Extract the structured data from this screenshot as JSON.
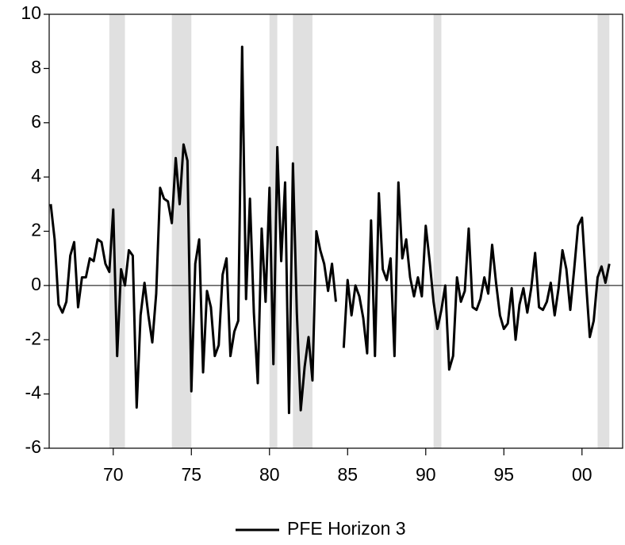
{
  "chart_data": {
    "type": "line",
    "x": [
      1966,
      1966.25,
      1966.5,
      1966.75,
      1967,
      1967.25,
      1967.5,
      1967.75,
      1968,
      1968.25,
      1968.5,
      1968.75,
      1969,
      1969.25,
      1969.5,
      1969.75,
      1970,
      1970.25,
      1970.5,
      1970.75,
      1971,
      1971.25,
      1971.5,
      1971.75,
      1972,
      1972.25,
      1972.5,
      1972.75,
      1973,
      1973.25,
      1973.5,
      1973.75,
      1974,
      1974.25,
      1974.5,
      1974.75,
      1975,
      1975.25,
      1975.5,
      1975.75,
      1976,
      1976.25,
      1976.5,
      1976.75,
      1977,
      1977.25,
      1977.5,
      1977.75,
      1978,
      1978.25,
      1978.5,
      1978.75,
      1979,
      1979.25,
      1979.5,
      1979.75,
      1980,
      1980.25,
      1980.5,
      1980.75,
      1981,
      1981.25,
      1981.5,
      1981.75,
      1982,
      1982.25,
      1982.5,
      1982.75,
      1983,
      1983.25,
      1983.5,
      1983.75,
      1984,
      1984.25,
      1984.5,
      1984.75,
      1985,
      1985.25,
      1985.5,
      1985.75,
      1986,
      1986.25,
      1986.5,
      1986.75,
      1987,
      1987.25,
      1987.5,
      1987.75,
      1988,
      1988.25,
      1988.5,
      1988.75,
      1989,
      1989.25,
      1989.5,
      1989.75,
      1990,
      1990.25,
      1990.5,
      1990.75,
      1991,
      1991.25,
      1991.5,
      1991.75,
      1992,
      1992.25,
      1992.5,
      1992.75,
      1993,
      1993.25,
      1993.5,
      1993.75,
      1994,
      1994.25,
      1994.5,
      1994.75,
      1995,
      1995.25,
      1995.5,
      1995.75,
      1996,
      1996.25,
      1996.5,
      1996.75,
      1997,
      1997.25,
      1997.5,
      1997.75,
      1998,
      1998.25,
      1998.5,
      1998.75,
      1999,
      1999.25,
      1999.5,
      1999.75,
      2000,
      2000.25,
      2000.5,
      2000.75,
      2001,
      2001.25,
      2001.5,
      2001.75
    ],
    "series": [
      {
        "name": "PFE Horizon 3",
        "color": "#000000",
        "values": [
          3.0,
          1.7,
          -0.7,
          -1.0,
          -0.6,
          1.1,
          1.6,
          -0.8,
          0.3,
          0.3,
          1.0,
          0.9,
          1.7,
          1.6,
          0.8,
          0.5,
          2.8,
          -2.6,
          0.6,
          0.0,
          1.3,
          1.1,
          -4.5,
          -1.1,
          0.1,
          -1.1,
          -2.1,
          -0.3,
          3.6,
          3.2,
          3.1,
          2.3,
          4.7,
          3.0,
          5.2,
          4.6,
          -3.9,
          0.8,
          1.7,
          -3.2,
          -0.2,
          -0.8,
          -2.6,
          -2.2,
          0.4,
          1.0,
          -2.6,
          -1.7,
          -1.3,
          8.8,
          -0.5,
          3.2,
          -1.0,
          -3.6,
          2.1,
          -0.6,
          3.6,
          -2.9,
          5.1,
          0.9,
          3.8,
          -4.7,
          4.5,
          -1.0,
          -4.6,
          -3.0,
          -1.9,
          -3.5,
          2.0,
          1.3,
          0.8,
          -0.2,
          0.8,
          -0.6,
          null,
          -2.3,
          0.2,
          -1.1,
          0.0,
          -0.4,
          -1.2,
          -2.5,
          2.4,
          -2.6,
          3.4,
          0.6,
          0.2,
          1.0,
          -2.6,
          3.8,
          1.0,
          1.7,
          0.3,
          -0.4,
          0.3,
          -0.4,
          2.2,
          0.9,
          -0.6,
          -1.6,
          -0.9,
          0.0,
          -3.1,
          -2.6,
          0.3,
          -0.6,
          -0.2,
          2.1,
          -0.8,
          -0.9,
          -0.5,
          0.3,
          -0.3,
          1.5,
          0.1,
          -1.1,
          -1.6,
          -1.4,
          -0.1,
          -2.0,
          -0.7,
          -0.1,
          -1.0,
          -0.1,
          1.2,
          -0.8,
          -0.9,
          -0.6,
          0.1,
          -1.1,
          -0.1,
          1.3,
          0.6,
          -0.9,
          0.6,
          2.2,
          2.5,
          0.2,
          -1.9,
          -1.3,
          0.3,
          0.7,
          0.1,
          0.8
        ]
      }
    ],
    "xlim": [
      1965.9,
      2002.6
    ],
    "xticks": [
      {
        "value": 1970,
        "label": "70"
      },
      {
        "value": 1975,
        "label": "75"
      },
      {
        "value": 1980,
        "label": "80"
      },
      {
        "value": 1985,
        "label": "85"
      },
      {
        "value": 1990,
        "label": "90"
      },
      {
        "value": 1995,
        "label": "95"
      },
      {
        "value": 2000,
        "label": "00"
      }
    ],
    "ylim": [
      -6,
      10
    ],
    "yticks": [
      -6,
      -4,
      -2,
      0,
      2,
      4,
      6,
      8,
      10
    ],
    "reference_line": 0,
    "shaded_periods": [
      [
        1969.75,
        1970.75
      ],
      [
        1973.75,
        1975.0
      ],
      [
        1980.0,
        1980.5
      ],
      [
        1981.5,
        1982.75
      ],
      [
        1990.5,
        1991.0
      ],
      [
        2001.0,
        2001.75
      ]
    ],
    "shade_color": "#e0e0e0",
    "legend": "bottom"
  }
}
